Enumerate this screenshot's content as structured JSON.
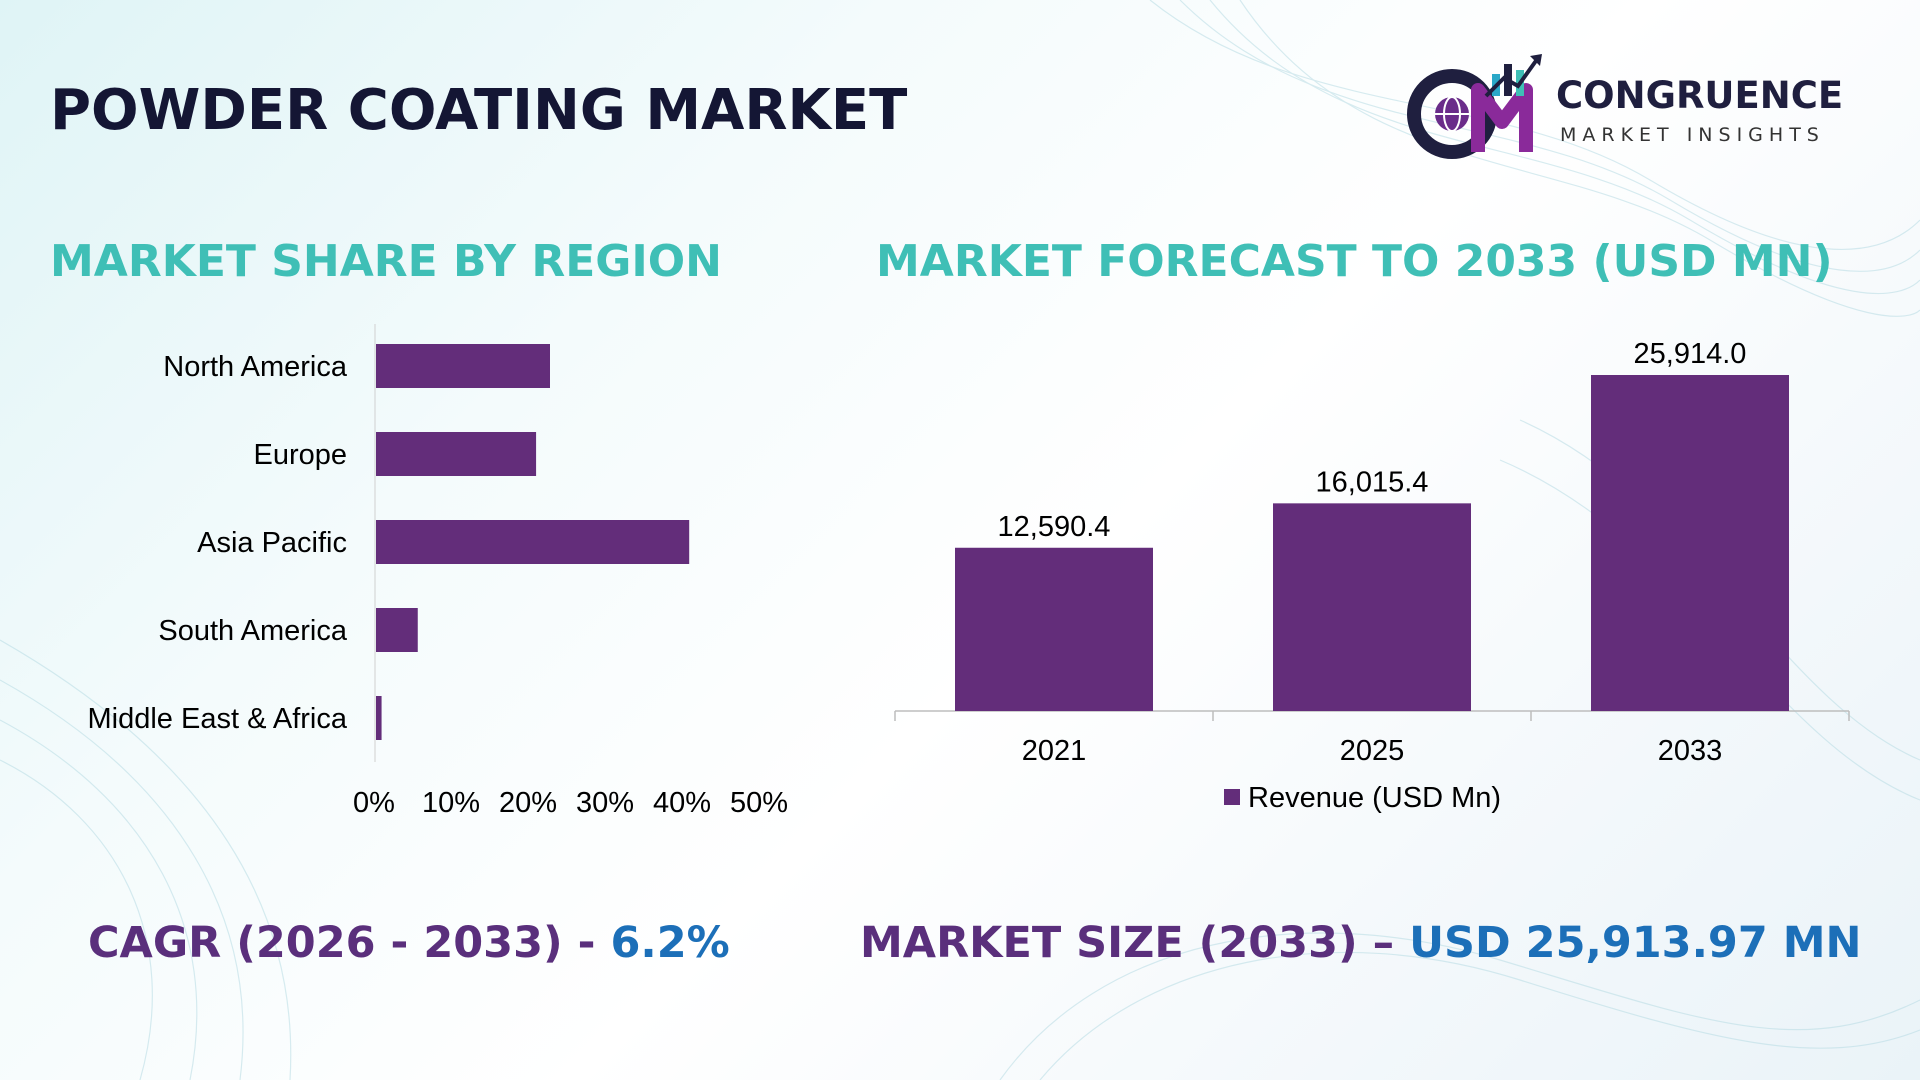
{
  "header": {
    "title": "POWDER COATING MARKET",
    "logo_name": "CONGRUENCE",
    "logo_sub": "MARKET INSIGHTS",
    "logo_icon": "cm-globe-chart-logo"
  },
  "colors": {
    "bar": "#632d7a",
    "section_title": "#3fbfb6",
    "title": "#141634",
    "footer_label": "#5a2f7c",
    "footer_value": "#1c6fb8"
  },
  "sections": {
    "left_title": "MARKET SHARE BY REGION",
    "right_title": "MARKET FORECAST TO 2033 (USD MN)"
  },
  "footer": {
    "cagr_label": "CAGR (2026 - 2033) - ",
    "cagr_value": "6.2%",
    "size_label": "MARKET SIZE (2033) – ",
    "size_value": "USD 25,913.97 MN"
  },
  "chart_data": [
    {
      "type": "bar",
      "orientation": "horizontal",
      "categories": [
        "North America",
        "Europe",
        "Asia Pacific",
        "South America",
        "Middle East & Africa"
      ],
      "values": [
        25,
        23,
        45,
        6,
        0.8
      ],
      "xlim": [
        0,
        50
      ],
      "ticks": [
        "0%",
        "10%",
        "20%",
        "30%",
        "40%",
        "50%"
      ],
      "grid": false,
      "legend": "none"
    },
    {
      "type": "bar",
      "categories": [
        "2021",
        "2025",
        "2033"
      ],
      "series": [
        {
          "name": "Revenue (USD Mn)",
          "values": [
            12590.4,
            16015.4,
            25914.0
          ]
        }
      ],
      "data_labels": [
        "12,590.4",
        "16,015.4",
        "25,914.0"
      ],
      "ylim": [
        0,
        27000
      ],
      "grid": false,
      "legend": "bottom"
    }
  ]
}
